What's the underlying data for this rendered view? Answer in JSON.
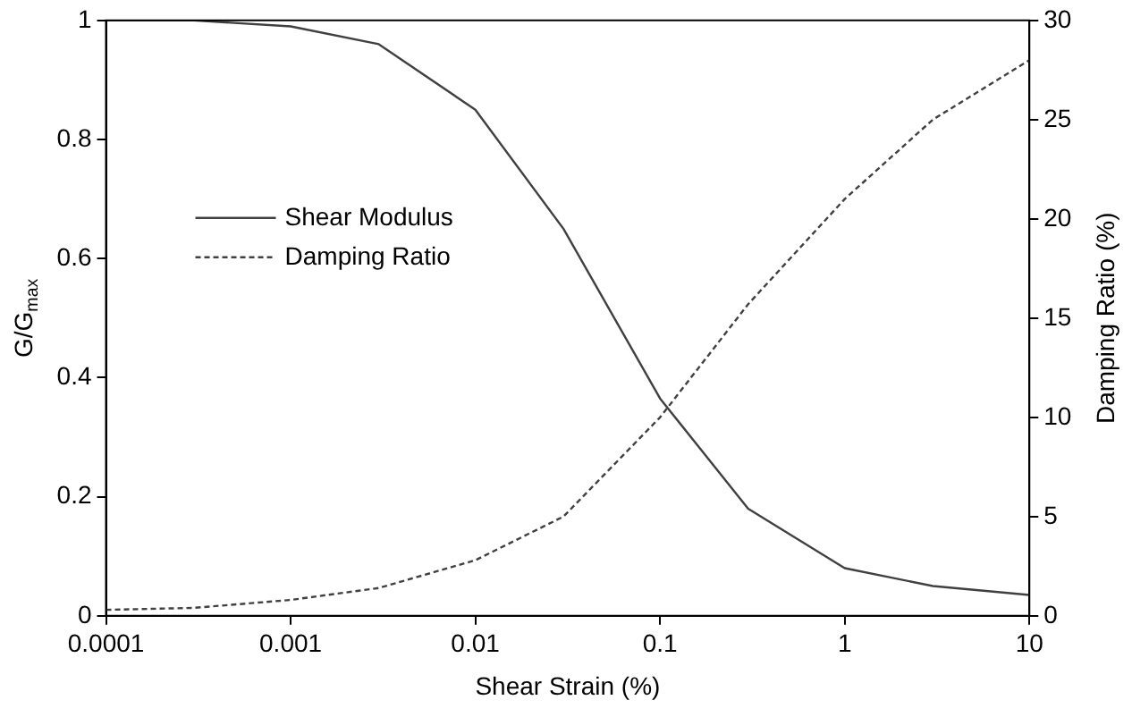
{
  "chart_data": {
    "type": "line",
    "xlabel": "Shear Strain (%)",
    "ylabel": "G/G$_{max}$",
    "y2label": "Damping Ratio (%)",
    "x": [
      0.0001,
      0.0003,
      0.001,
      0.003,
      0.01,
      0.03,
      0.1,
      0.3,
      1,
      3,
      10
    ],
    "series": [
      {
        "name": "Shear Modulus",
        "color": "#404040",
        "line_style": "solid",
        "values": [
          1.0,
          1.0,
          0.99,
          0.96,
          0.85,
          0.65,
          0.365,
          0.18,
          0.08,
          0.05,
          0.035
        ]
      },
      {
        "name": "Damping Ratio",
        "color": "#404040",
        "line_style": "dashed",
        "axis": "y2",
        "values": [
          0.3,
          0.4,
          0.8,
          1.4,
          2.8,
          5.0,
          10,
          15.7,
          21,
          25,
          28
        ]
      }
    ],
    "log": "x",
    "xlim": [
      0.0001,
      10
    ],
    "xticks": [
      0.0001,
      0.001,
      0.01,
      0.1,
      1,
      10
    ],
    "ylim": [
      0,
      1
    ],
    "yticks": [
      0,
      0.2,
      0.4,
      0.6,
      0.8,
      1
    ],
    "y2lim": [
      0,
      30
    ],
    "y2ticks": [
      0,
      5,
      10,
      15,
      20,
      25,
      30
    ],
    "grid": false,
    "legend": "center left",
    "marker": "none"
  }
}
